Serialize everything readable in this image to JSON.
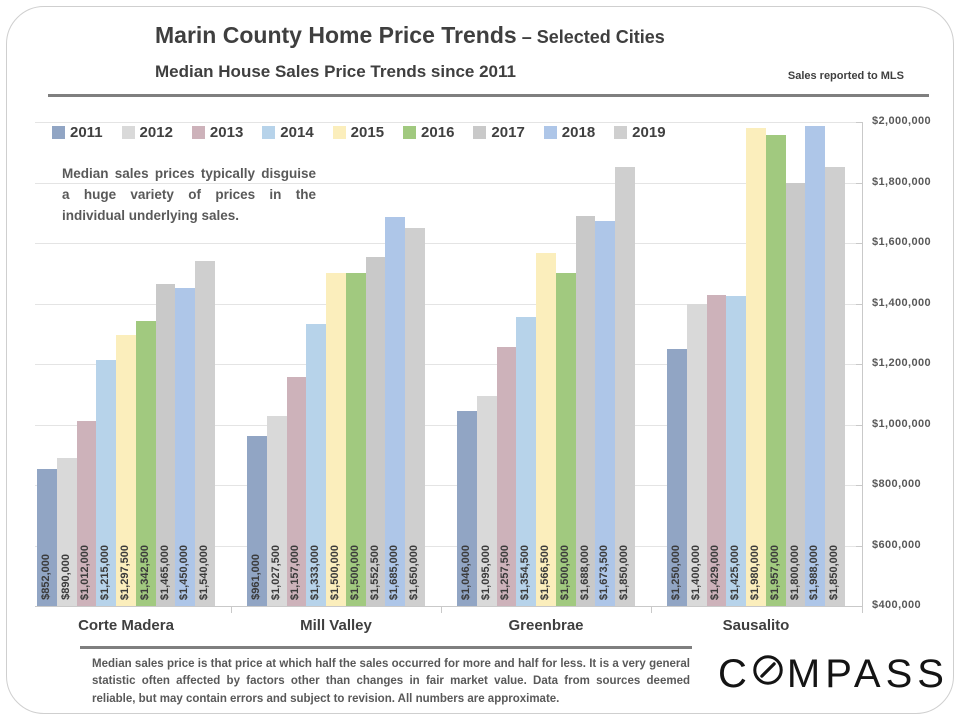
{
  "header": {
    "title": "Marin County Home Price Trends",
    "title_suffix": " – Selected Cities",
    "subtitle": "Median House Sales Price Trends since 2011",
    "note_right": "Sales reported to MLS"
  },
  "annotation": "Median sales prices typically disguise a huge variety of prices in the individual underlying sales.",
  "chart_data": {
    "type": "bar",
    "title": "Median House Sales Price Trends since 2011",
    "categories": [
      "Corte Madera",
      "Mill Valley",
      "Greenbrae",
      "Sausalito"
    ],
    "series": [
      {
        "name": "2011",
        "color": "#91a5c4",
        "values": [
          852000,
          961000,
          1046000,
          1250000
        ]
      },
      {
        "name": "2012",
        "color": "#d9d9d9",
        "values": [
          890000,
          1027500,
          1095000,
          1400000
        ]
      },
      {
        "name": "2013",
        "color": "#cdb2ba",
        "values": [
          1012000,
          1157000,
          1257500,
          1429000
        ]
      },
      {
        "name": "2014",
        "color": "#b7d3ea",
        "values": [
          1215000,
          1333000,
          1354500,
          1425000
        ]
      },
      {
        "name": "2015",
        "color": "#fbeebc",
        "values": [
          1297500,
          1500000,
          1566500,
          1980000
        ]
      },
      {
        "name": "2016",
        "color": "#a1c97f",
        "values": [
          1342500,
          1500000,
          1500000,
          1957000
        ]
      },
      {
        "name": "2017",
        "color": "#c9c9c9",
        "values": [
          1465000,
          1552500,
          1688000,
          1800000
        ]
      },
      {
        "name": "2018",
        "color": "#aec6e8",
        "values": [
          1450000,
          1685000,
          1673500,
          1988000
        ]
      },
      {
        "name": "2019",
        "color": "#cfcfcf",
        "values": [
          1540000,
          1650000,
          1850000,
          1850000
        ]
      }
    ],
    "ylim": [
      400000,
      2000000
    ],
    "ytick_step": 200000,
    "ytick_labels": [
      "$2,000,000",
      "$1,800,000",
      "$1,600,000",
      "$1,400,000",
      "$1,200,000",
      "$1,000,000",
      "$800,000",
      "$600,000",
      "$400,000"
    ],
    "grid": true,
    "legend_position": "top",
    "value_label_prefix": "$"
  },
  "footer": {
    "disclaimer": "Median sales price is that price at which half the sales occurred for more and half for less. It is a very general statistic often affected by factors other than changes in fair market value. Data from sources deemed reliable, but may contain errors and subject to revision. All numbers are approximate.",
    "brand_pre": "C",
    "brand_post": "MPASS"
  }
}
